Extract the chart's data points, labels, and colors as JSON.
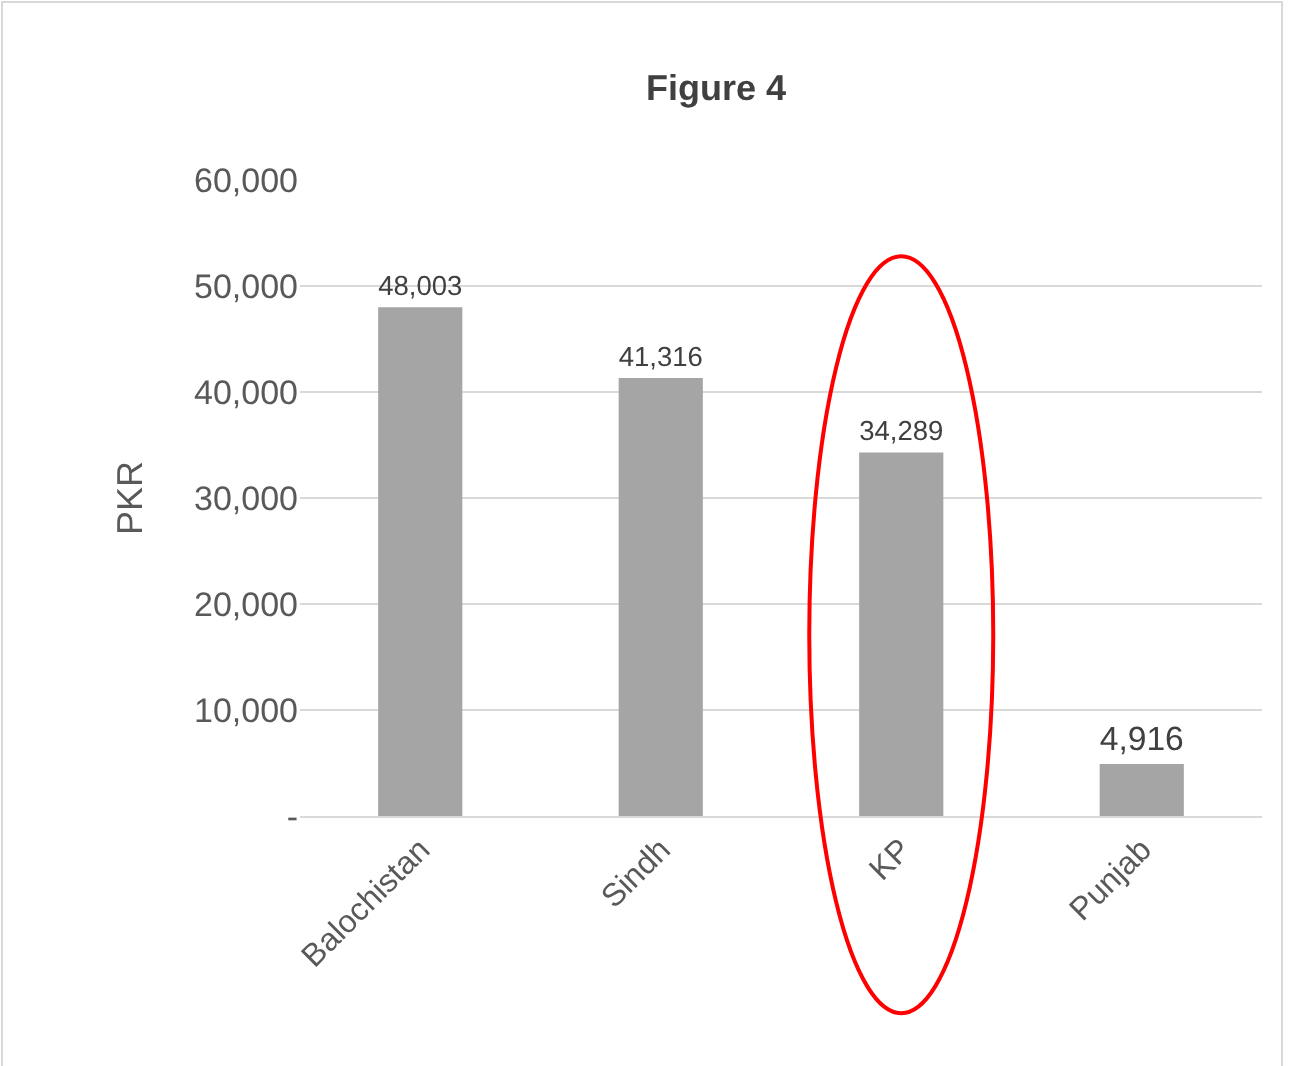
{
  "chart_data": {
    "type": "bar",
    "title": "Figure 4",
    "ylabel": "PKR",
    "categories": [
      "Balochistan",
      "Sindh",
      "KP",
      "Punjab"
    ],
    "values": [
      48003,
      41316,
      34289,
      4916
    ],
    "color": "#a5a5a5",
    "ylim": [
      0,
      60000
    ],
    "yticks": [
      {
        "value": 0,
        "label": "-"
      },
      {
        "value": 10000,
        "label": "10,000"
      },
      {
        "value": 20000,
        "label": "20,000"
      },
      {
        "value": 30000,
        "label": "30,000"
      },
      {
        "value": 40000,
        "label": "40,000"
      },
      {
        "value": 50000,
        "label": "50,000"
      },
      {
        "value": 60000,
        "label": "60,000"
      }
    ],
    "grid": "y",
    "value_labels": [
      "48,003",
      "41,316",
      "34,289",
      "4,916"
    ]
  }
}
